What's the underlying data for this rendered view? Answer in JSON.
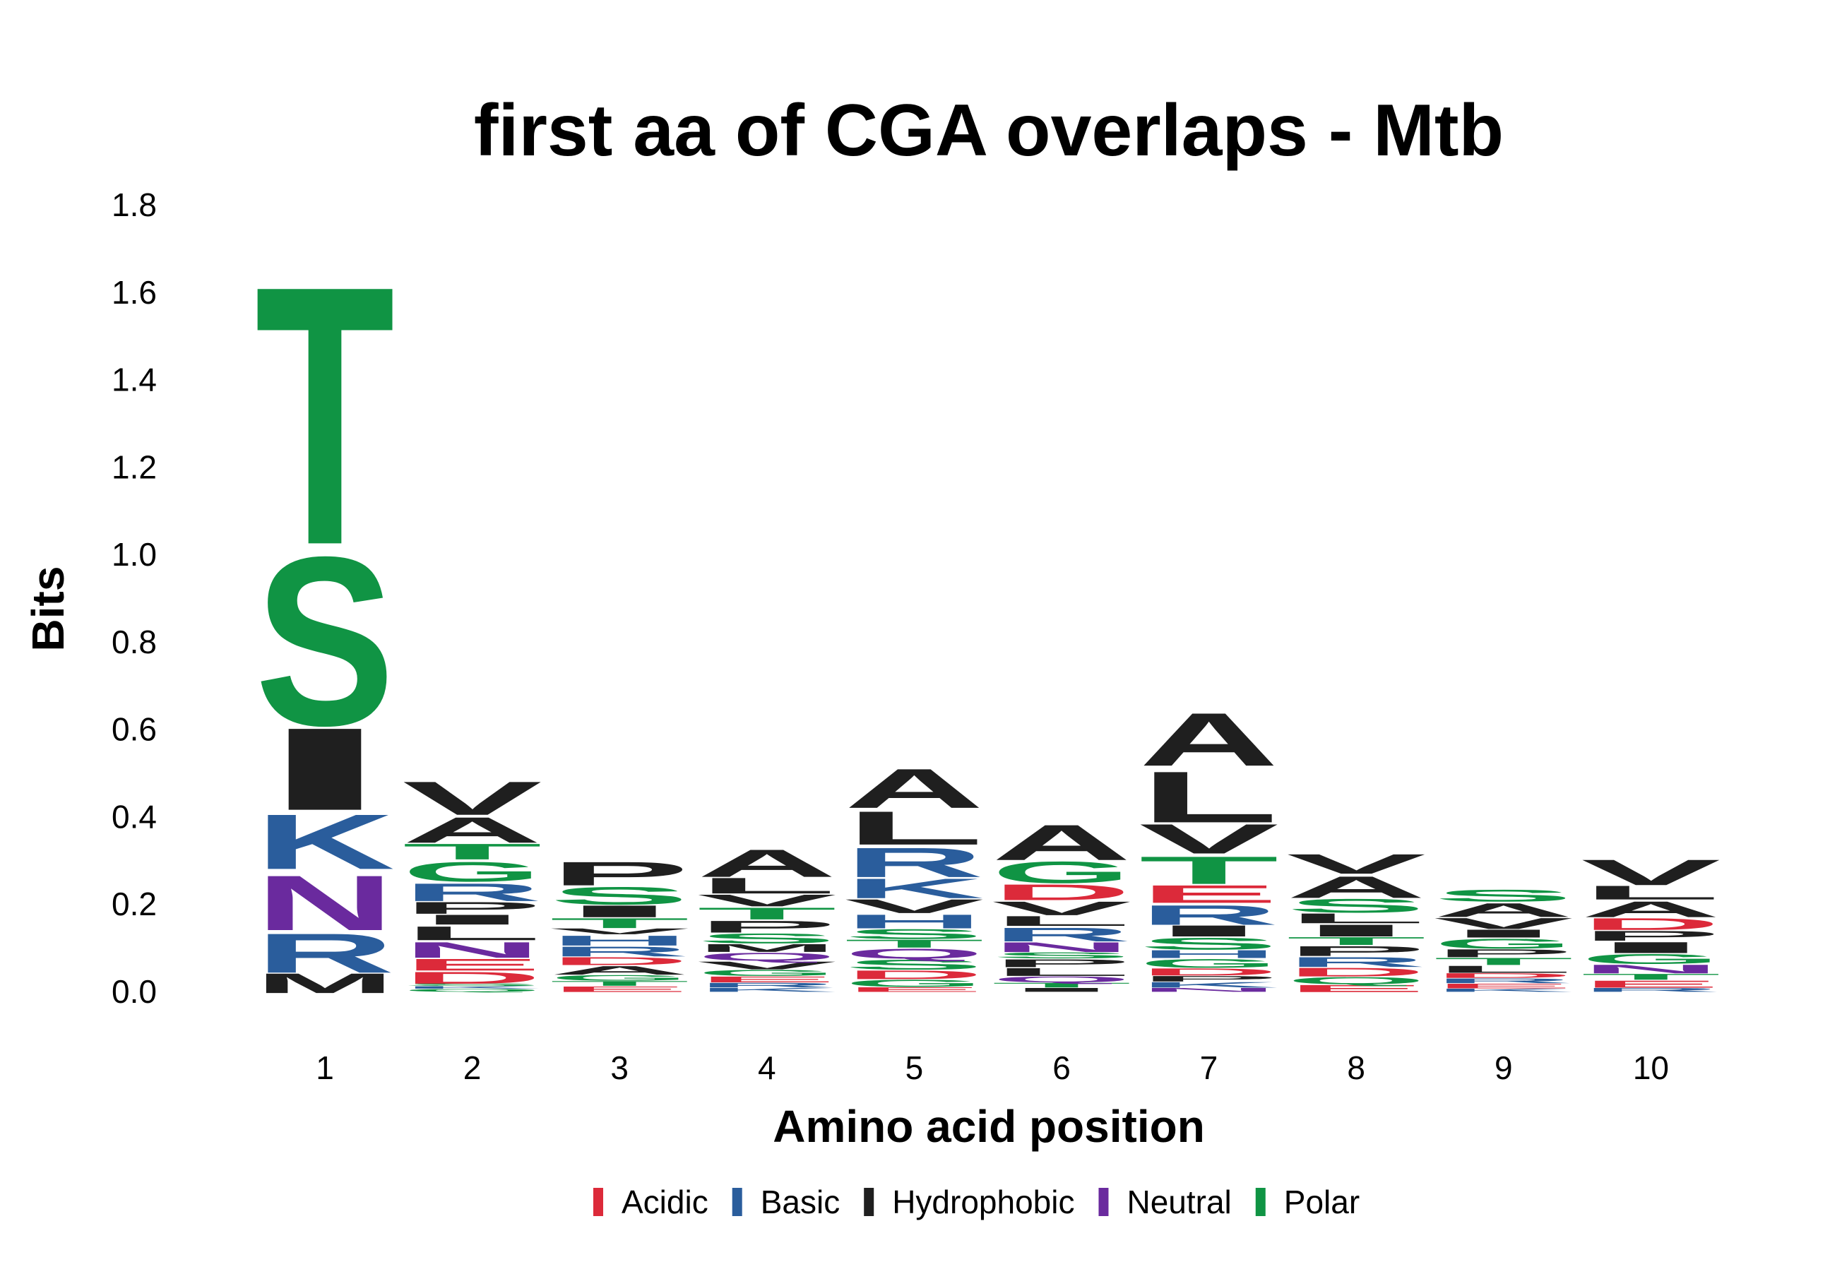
{
  "chart_data": {
    "type": "sequence-logo",
    "title": "first aa of CGA overlaps - Mtb",
    "xlabel": "Amino acid position",
    "ylabel": "Bits",
    "ylim": [
      0,
      1.8
    ],
    "y_ticks": [
      "0.0",
      "0.2",
      "0.4",
      "0.6",
      "0.8",
      "1.0",
      "1.2",
      "1.4",
      "1.6",
      "1.8"
    ],
    "x_ticks": [
      "1",
      "2",
      "3",
      "4",
      "5",
      "6",
      "7",
      "8",
      "9",
      "10"
    ],
    "grid": false,
    "legend_position": "bottom",
    "colors": {
      "Acidic": "#dc2a3a",
      "Basic": "#2a5d9c",
      "Hydrophobic": "#1f1f1f",
      "Neutral": "#6a2a9e",
      "Polar": "#109444"
    },
    "legend": [
      {
        "name": "Acidic"
      },
      {
        "name": "Basic"
      },
      {
        "name": "Hydrophobic"
      },
      {
        "name": "Neutral"
      },
      {
        "name": "Polar"
      }
    ],
    "positions": [
      {
        "position": 1,
        "letters": [
          {
            "aa": "M",
            "class": "Hydrophobic",
            "height": 0.05
          },
          {
            "aa": "R",
            "class": "Basic",
            "height": 0.1
          },
          {
            "aa": "N",
            "class": "Neutral",
            "height": 0.14
          },
          {
            "aa": "K",
            "class": "Basic",
            "height": 0.14
          },
          {
            "aa": "I",
            "class": "Hydrophobic",
            "height": 0.21
          },
          {
            "aa": "S",
            "class": "Polar",
            "height": 0.43
          },
          {
            "aa": "T",
            "class": "Polar",
            "height": 0.66
          }
        ]
      },
      {
        "position": 2,
        "letters": [
          {
            "aa": "Q",
            "class": "Polar",
            "height": 0.007
          },
          {
            "aa": "K",
            "class": "Basic",
            "height": 0.006
          },
          {
            "aa": "S",
            "class": "Polar",
            "height": 0.007
          },
          {
            "aa": "D",
            "class": "Acidic",
            "height": 0.03
          },
          {
            "aa": "E",
            "class": "Acidic",
            "height": 0.03
          },
          {
            "aa": "N",
            "class": "Neutral",
            "height": 0.04
          },
          {
            "aa": "L",
            "class": "Hydrophobic",
            "height": 0.035
          },
          {
            "aa": "I",
            "class": "Hydrophobic",
            "height": 0.025
          },
          {
            "aa": "P",
            "class": "Hydrophobic",
            "height": 0.03
          },
          {
            "aa": "R",
            "class": "Basic",
            "height": 0.045
          },
          {
            "aa": "G",
            "class": "Polar",
            "height": 0.05
          },
          {
            "aa": "T",
            "class": "Polar",
            "height": 0.04
          },
          {
            "aa": "A",
            "class": "Hydrophobic",
            "height": 0.065
          },
          {
            "aa": "V",
            "class": "Hydrophobic",
            "height": 0.085
          }
        ]
      },
      {
        "position": 3,
        "letters": [
          {
            "aa": "E",
            "class": "Acidic",
            "height": 0.014
          },
          {
            "aa": "T",
            "class": "Polar",
            "height": 0.012
          },
          {
            "aa": "G",
            "class": "Polar",
            "height": 0.014
          },
          {
            "aa": "A",
            "class": "Hydrophobic",
            "height": 0.022
          },
          {
            "aa": "D",
            "class": "Acidic",
            "height": 0.02
          },
          {
            "aa": "R",
            "class": "Basic",
            "height": 0.025
          },
          {
            "aa": "H",
            "class": "Basic",
            "height": 0.025
          },
          {
            "aa": "V",
            "class": "Hydrophobic",
            "height": 0.015
          },
          {
            "aa": "T",
            "class": "Polar",
            "height": 0.025
          },
          {
            "aa": "I",
            "class": "Hydrophobic",
            "height": 0.03
          },
          {
            "aa": "S",
            "class": "Polar",
            "height": 0.045
          },
          {
            "aa": "P",
            "class": "Hydrophobic",
            "height": 0.06
          }
        ]
      },
      {
        "position": 4,
        "letters": [
          {
            "aa": "K",
            "class": "Basic",
            "height": 0.01
          },
          {
            "aa": "R",
            "class": "Basic",
            "height": 0.012
          },
          {
            "aa": "E",
            "class": "Acidic",
            "height": 0.015
          },
          {
            "aa": "G",
            "class": "Polar",
            "height": 0.015
          },
          {
            "aa": "V",
            "class": "Hydrophobic",
            "height": 0.02
          },
          {
            "aa": "Q",
            "class": "Neutral",
            "height": 0.02
          },
          {
            "aa": "M",
            "class": "Hydrophobic",
            "height": 0.02
          },
          {
            "aa": "S",
            "class": "Polar",
            "height": 0.025
          },
          {
            "aa": "P",
            "class": "Hydrophobic",
            "height": 0.03
          },
          {
            "aa": "T",
            "class": "Polar",
            "height": 0.03
          },
          {
            "aa": "V",
            "class": "Hydrophobic",
            "height": 0.03
          },
          {
            "aa": "L",
            "class": "Hydrophobic",
            "height": 0.04
          },
          {
            "aa": "A",
            "class": "Hydrophobic",
            "height": 0.07
          }
        ]
      },
      {
        "position": 5,
        "letters": [
          {
            "aa": "E",
            "class": "Acidic",
            "height": 0.012
          },
          {
            "aa": "G",
            "class": "Polar",
            "height": 0.018
          },
          {
            "aa": "D",
            "class": "Acidic",
            "height": 0.022
          },
          {
            "aa": "S",
            "class": "Polar",
            "height": 0.025
          },
          {
            "aa": "Q",
            "class": "Neutral",
            "height": 0.025
          },
          {
            "aa": "T",
            "class": "Polar",
            "height": 0.02
          },
          {
            "aa": "S",
            "class": "Polar",
            "height": 0.025
          },
          {
            "aa": "H",
            "class": "Basic",
            "height": 0.035
          },
          {
            "aa": "V",
            "class": "Hydrophobic",
            "height": 0.035
          },
          {
            "aa": "K",
            "class": "Basic",
            "height": 0.05
          },
          {
            "aa": "R",
            "class": "Basic",
            "height": 0.075
          },
          {
            "aa": "L",
            "class": "Hydrophobic",
            "height": 0.085
          },
          {
            "aa": "A",
            "class": "Hydrophobic",
            "height": 0.1
          }
        ]
      },
      {
        "position": 6,
        "letters": [
          {
            "aa": "I",
            "class": "Hydrophobic",
            "height": 0.01
          },
          {
            "aa": "T",
            "class": "Polar",
            "height": 0.012
          },
          {
            "aa": "Q",
            "class": "Neutral",
            "height": 0.015
          },
          {
            "aa": "L",
            "class": "Hydrophobic",
            "height": 0.02
          },
          {
            "aa": "P",
            "class": "Hydrophobic",
            "height": 0.02
          },
          {
            "aa": "S",
            "class": "Polar",
            "height": 0.015
          },
          {
            "aa": "N",
            "class": "Neutral",
            "height": 0.025
          },
          {
            "aa": "R",
            "class": "Basic",
            "height": 0.035
          },
          {
            "aa": "L",
            "class": "Hydrophobic",
            "height": 0.025
          },
          {
            "aa": "V",
            "class": "Hydrophobic",
            "height": 0.035
          },
          {
            "aa": "D",
            "class": "Acidic",
            "height": 0.04
          },
          {
            "aa": "G",
            "class": "Polar",
            "height": 0.055
          },
          {
            "aa": "A",
            "class": "Hydrophobic",
            "height": 0.09
          }
        ]
      },
      {
        "position": 7,
        "letters": [
          {
            "aa": "N",
            "class": "Neutral",
            "height": 0.01
          },
          {
            "aa": "K",
            "class": "Basic",
            "height": 0.014
          },
          {
            "aa": "P",
            "class": "Hydrophobic",
            "height": 0.014
          },
          {
            "aa": "D",
            "class": "Acidic",
            "height": 0.018
          },
          {
            "aa": "G",
            "class": "Polar",
            "height": 0.022
          },
          {
            "aa": "H",
            "class": "Basic",
            "height": 0.02
          },
          {
            "aa": "S",
            "class": "Polar",
            "height": 0.03
          },
          {
            "aa": "I",
            "class": "Hydrophobic",
            "height": 0.028
          },
          {
            "aa": "R",
            "class": "Basic",
            "height": 0.05
          },
          {
            "aa": "E",
            "class": "Acidic",
            "height": 0.045
          },
          {
            "aa": "T",
            "class": "Polar",
            "height": 0.07
          },
          {
            "aa": "V",
            "class": "Hydrophobic",
            "height": 0.075
          },
          {
            "aa": "L",
            "class": "Hydrophobic",
            "height": 0.13
          },
          {
            "aa": "A",
            "class": "Hydrophobic",
            "height": 0.135
          }
        ]
      },
      {
        "position": 8,
        "letters": [
          {
            "aa": "E",
            "class": "Acidic",
            "height": 0.018
          },
          {
            "aa": "Q",
            "class": "Polar",
            "height": 0.018
          },
          {
            "aa": "D",
            "class": "Acidic",
            "height": 0.022
          },
          {
            "aa": "R",
            "class": "Basic",
            "height": 0.025
          },
          {
            "aa": "P",
            "class": "Hydrophobic",
            "height": 0.025
          },
          {
            "aa": "T",
            "class": "Polar",
            "height": 0.02
          },
          {
            "aa": "I",
            "class": "Hydrophobic",
            "height": 0.03
          },
          {
            "aa": "L",
            "class": "Hydrophobic",
            "height": 0.025
          },
          {
            "aa": "S",
            "class": "Polar",
            "height": 0.035
          },
          {
            "aa": "A",
            "class": "Hydrophobic",
            "height": 0.055
          },
          {
            "aa": "V",
            "class": "Hydrophobic",
            "height": 0.05
          }
        ]
      },
      {
        "position": 9,
        "letters": [
          {
            "aa": "K",
            "class": "Basic",
            "height": 0.008
          },
          {
            "aa": "E",
            "class": "Acidic",
            "height": 0.012
          },
          {
            "aa": "R",
            "class": "Basic",
            "height": 0.012
          },
          {
            "aa": "D",
            "class": "Acidic",
            "height": 0.012
          },
          {
            "aa": "L",
            "class": "Hydrophobic",
            "height": 0.018
          },
          {
            "aa": "T",
            "class": "Polar",
            "height": 0.018
          },
          {
            "aa": "P",
            "class": "Hydrophobic",
            "height": 0.02
          },
          {
            "aa": "G",
            "class": "Polar",
            "height": 0.025
          },
          {
            "aa": "I",
            "class": "Hydrophobic",
            "height": 0.02
          },
          {
            "aa": "V",
            "class": "Hydrophobic",
            "height": 0.028
          },
          {
            "aa": "A",
            "class": "Hydrophobic",
            "height": 0.035
          },
          {
            "aa": "S",
            "class": "Polar",
            "height": 0.03
          }
        ]
      },
      {
        "position": 10,
        "letters": [
          {
            "aa": "R",
            "class": "Basic",
            "height": 0.01
          },
          {
            "aa": "E",
            "class": "Acidic",
            "height": 0.018
          },
          {
            "aa": "T",
            "class": "Polar",
            "height": 0.015
          },
          {
            "aa": "N",
            "class": "Neutral",
            "height": 0.022
          },
          {
            "aa": "G",
            "class": "Polar",
            "height": 0.025
          },
          {
            "aa": "I",
            "class": "Hydrophobic",
            "height": 0.028
          },
          {
            "aa": "P",
            "class": "Hydrophobic",
            "height": 0.025
          },
          {
            "aa": "D",
            "class": "Acidic",
            "height": 0.03
          },
          {
            "aa": "A",
            "class": "Hydrophobic",
            "height": 0.04
          },
          {
            "aa": "L",
            "class": "Hydrophobic",
            "height": 0.035
          },
          {
            "aa": "V",
            "class": "Hydrophobic",
            "height": 0.065
          }
        ]
      }
    ]
  }
}
